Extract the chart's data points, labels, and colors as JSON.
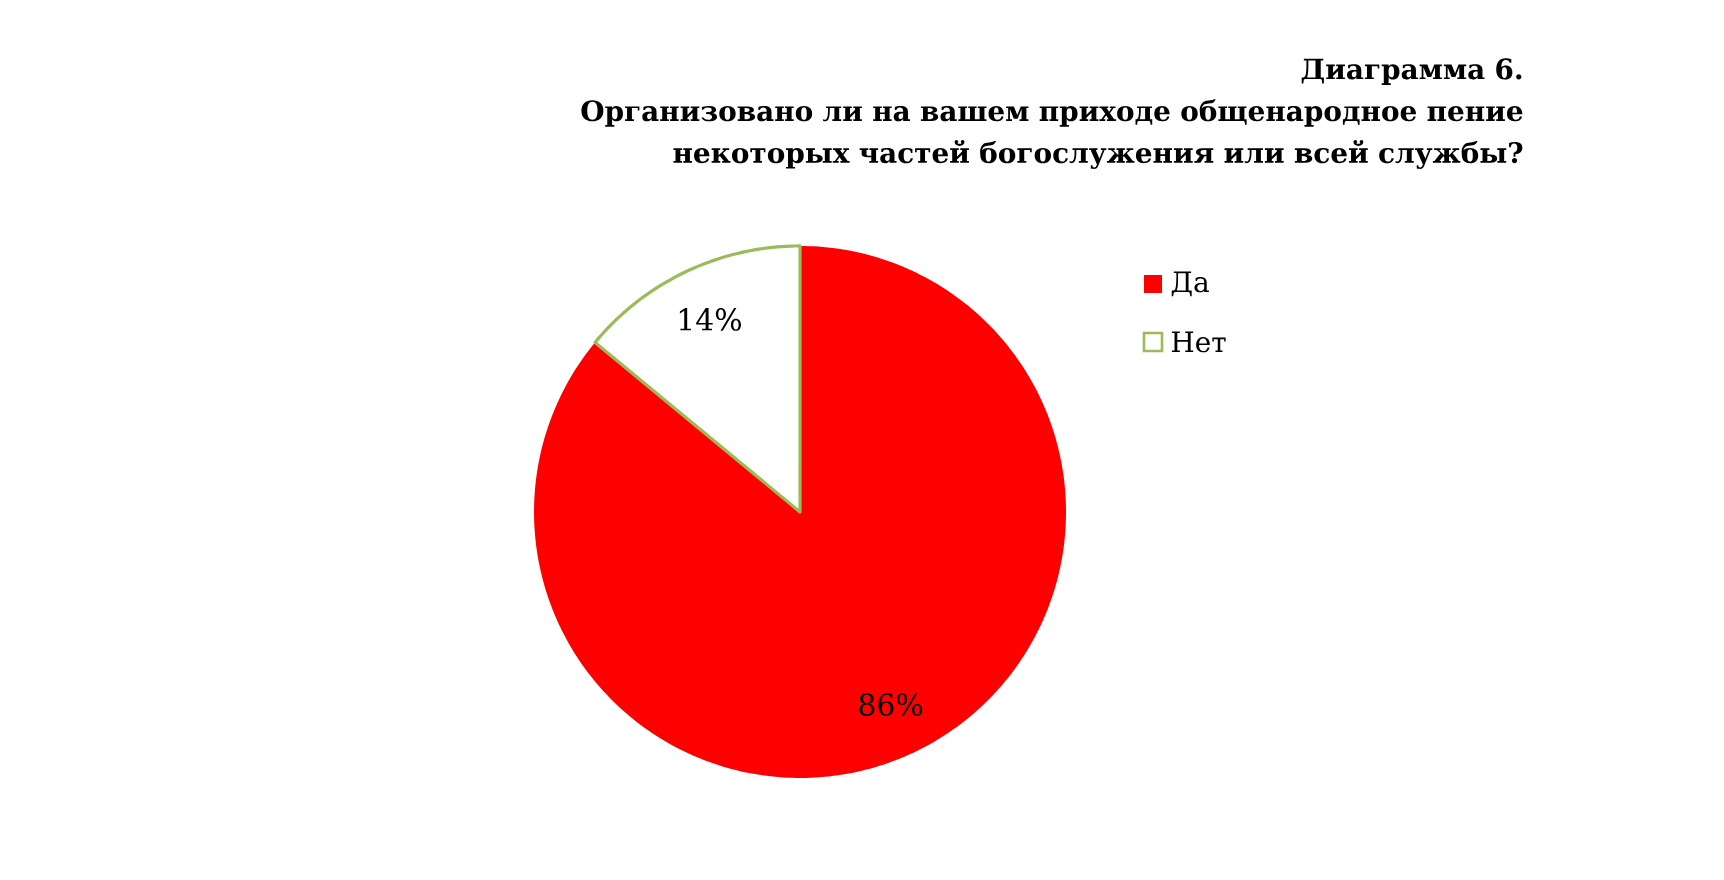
{
  "chart_data": {
    "type": "pie",
    "title": "Диаграмма 6.",
    "subtitle": "Организовано ли на вашем приходе общенародное пение некоторых частей богослужения или всей службы?",
    "categories": [
      "Да",
      "Нет"
    ],
    "values": [
      86,
      14
    ],
    "colors": [
      "#ff0000",
      "#ffffff"
    ],
    "value_labels": [
      "86%",
      "14%"
    ],
    "legend": "right"
  }
}
